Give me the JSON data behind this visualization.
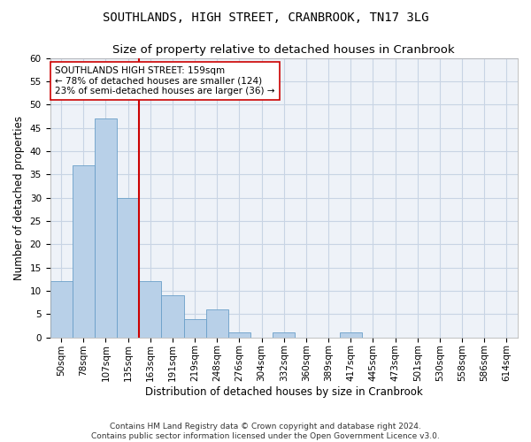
{
  "title": "SOUTHLANDS, HIGH STREET, CRANBROOK, TN17 3LG",
  "subtitle": "Size of property relative to detached houses in Cranbrook",
  "xlabel": "Distribution of detached houses by size in Cranbrook",
  "ylabel": "Number of detached properties",
  "bar_values": [
    12,
    37,
    47,
    30,
    12,
    9,
    4,
    6,
    1,
    0,
    1,
    0,
    0,
    1,
    0,
    0,
    0,
    0,
    0,
    0,
    0
  ],
  "categories": [
    "50sqm",
    "78sqm",
    "107sqm",
    "135sqm",
    "163sqm",
    "191sqm",
    "219sqm",
    "248sqm",
    "276sqm",
    "304sqm",
    "332sqm",
    "360sqm",
    "389sqm",
    "417sqm",
    "445sqm",
    "473sqm",
    "501sqm",
    "530sqm",
    "558sqm",
    "586sqm",
    "614sqm"
  ],
  "bar_color": "#b8d0e8",
  "bar_edge_color": "#6a9fc8",
  "vline_color": "#cc0000",
  "vline_index": 4,
  "annotation_text": "SOUTHLANDS HIGH STREET: 159sqm\n← 78% of detached houses are smaller (124)\n23% of semi-detached houses are larger (36) →",
  "annotation_box_color": "#ffffff",
  "annotation_box_edge": "#cc0000",
  "ylim": [
    0,
    60
  ],
  "yticks": [
    0,
    5,
    10,
    15,
    20,
    25,
    30,
    35,
    40,
    45,
    50,
    55,
    60
  ],
  "footer_line1": "Contains HM Land Registry data © Crown copyright and database right 2024.",
  "footer_line2": "Contains public sector information licensed under the Open Government Licence v3.0.",
  "background_color": "#eef2f8",
  "grid_color": "#c8d4e4",
  "title_fontsize": 10,
  "subtitle_fontsize": 9.5,
  "tick_fontsize": 7.5,
  "ylabel_fontsize": 8.5,
  "xlabel_fontsize": 8.5,
  "annotation_fontsize": 7.5,
  "footer_fontsize": 6.5
}
